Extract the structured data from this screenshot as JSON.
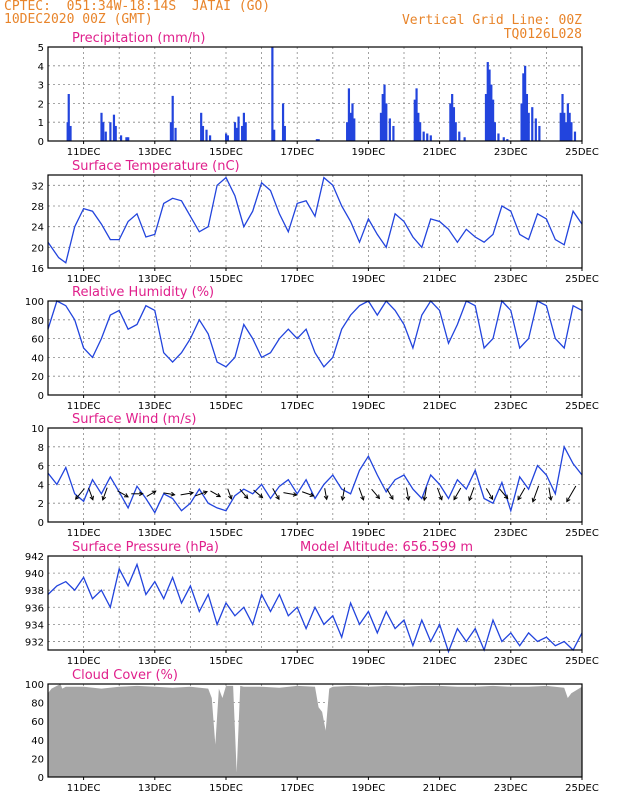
{
  "header": {
    "line1": "CPTEC:  051:34W-18:14S  JATAI (GO)",
    "line2": "10DEC2020 00Z (GMT)",
    "right1": "Vertical Grid Line: 00Z",
    "right2": "TQ0126L028"
  },
  "colors": {
    "header": "#e8842a",
    "title": "#e0208c",
    "line": "#2244dd",
    "cloud": "#a6a6a6"
  },
  "date_ticks": [
    "11DEC",
    "13DEC",
    "15DEC",
    "17DEC",
    "19DEC",
    "21DEC",
    "23DEC",
    "25DEC"
  ],
  "chart_data": [
    {
      "id": "precip",
      "type": "bar",
      "title": "Precipitation (mm/h)",
      "ylim": [
        0,
        5
      ],
      "yticks": [
        0,
        1,
        2,
        3,
        4,
        5
      ],
      "xlim_days": [
        10,
        25
      ],
      "x": [
        10.55,
        10.58,
        10.63,
        11.5,
        11.55,
        11.62,
        11.75,
        11.85,
        11.9,
        12.05,
        12.2,
        12.25,
        13.45,
        13.5,
        13.58,
        14.3,
        14.35,
        14.45,
        14.55,
        15.0,
        15.05,
        15.25,
        15.3,
        15.35,
        15.45,
        15.5,
        15.55,
        16.3,
        16.35,
        16.6,
        16.65,
        17.55,
        17.6,
        18.4,
        18.45,
        18.5,
        18.55,
        18.6,
        19.35,
        19.4,
        19.45,
        19.5,
        19.6,
        19.7,
        20.3,
        20.35,
        20.4,
        20.45,
        20.55,
        20.65,
        20.75,
        21.3,
        21.35,
        21.4,
        21.45,
        21.55,
        21.7,
        22.3,
        22.35,
        22.4,
        22.45,
        22.5,
        22.55,
        22.65,
        22.8,
        22.9,
        23.3,
        23.35,
        23.4,
        23.45,
        23.5,
        23.6,
        23.7,
        23.8,
        24.4,
        24.45,
        24.5,
        24.55,
        24.6,
        24.65,
        24.7,
        24.8
      ],
      "values": [
        1.0,
        2.5,
        0.8,
        1.5,
        1.0,
        0.5,
        1.0,
        1.4,
        0.8,
        0.3,
        0.2,
        0.2,
        1.0,
        2.4,
        0.7,
        1.5,
        0.8,
        0.6,
        0.3,
        0.4,
        0.3,
        1.0,
        0.7,
        1.3,
        0.8,
        1.5,
        1.0,
        5.0,
        0.6,
        2.0,
        0.8,
        0.1,
        0.1,
        1.0,
        2.8,
        1.5,
        2.0,
        1.2,
        1.5,
        2.5,
        3.0,
        2.0,
        1.2,
        0.8,
        2.2,
        2.8,
        1.5,
        1.0,
        0.5,
        0.4,
        0.3,
        2.0,
        2.5,
        1.8,
        1.0,
        0.5,
        0.2,
        2.5,
        4.2,
        3.8,
        3.0,
        2.2,
        1.0,
        0.4,
        0.2,
        0.1,
        2.0,
        3.6,
        4.0,
        2.5,
        1.5,
        1.8,
        1.2,
        0.8,
        1.5,
        2.5,
        1.5,
        1.0,
        2.0,
        1.5,
        1.0,
        0.5
      ]
    },
    {
      "id": "temp",
      "type": "line",
      "title": "Surface Temperature (nC)",
      "ylim": [
        16,
        34
      ],
      "yticks": [
        16,
        20,
        24,
        28,
        32
      ],
      "x": [
        10.0,
        10.3,
        10.5,
        10.75,
        11.0,
        11.25,
        11.5,
        11.75,
        12.0,
        12.25,
        12.5,
        12.75,
        13.0,
        13.25,
        13.5,
        13.75,
        14.0,
        14.25,
        14.5,
        14.75,
        15.0,
        15.25,
        15.5,
        15.75,
        16.0,
        16.25,
        16.5,
        16.75,
        17.0,
        17.25,
        17.5,
        17.75,
        18.0,
        18.25,
        18.5,
        18.75,
        19.0,
        19.25,
        19.5,
        19.75,
        20.0,
        20.25,
        20.5,
        20.75,
        21.0,
        21.25,
        21.5,
        21.75,
        22.0,
        22.25,
        22.5,
        22.75,
        23.0,
        23.25,
        23.5,
        23.75,
        24.0,
        24.25,
        24.5,
        24.75,
        25.0
      ],
      "values": [
        21.0,
        18.0,
        17.0,
        24.0,
        27.5,
        27.0,
        24.5,
        21.5,
        21.5,
        25.0,
        26.5,
        22.0,
        22.5,
        28.5,
        29.5,
        29.0,
        26.0,
        23.0,
        24.0,
        32.0,
        33.5,
        30.0,
        24.0,
        27.0,
        32.5,
        31.0,
        26.5,
        23.0,
        28.5,
        29.0,
        26.0,
        33.5,
        32.0,
        28.0,
        25.0,
        21.0,
        25.5,
        22.5,
        20.0,
        26.5,
        25.0,
        22.0,
        20.0,
        25.5,
        25.0,
        23.5,
        21.0,
        23.5,
        22.0,
        21.0,
        22.5,
        28.0,
        27.0,
        22.5,
        21.5,
        26.5,
        25.5,
        21.5,
        20.5,
        27.0,
        24.5
      ]
    },
    {
      "id": "rh",
      "type": "line",
      "title": "Relative Humidity (%)",
      "ylim": [
        0,
        100
      ],
      "yticks": [
        0,
        20,
        40,
        60,
        80,
        100
      ],
      "x": [
        10.0,
        10.25,
        10.5,
        10.75,
        11.0,
        11.25,
        11.5,
        11.75,
        12.0,
        12.25,
        12.5,
        12.75,
        13.0,
        13.25,
        13.5,
        13.75,
        14.0,
        14.25,
        14.5,
        14.75,
        15.0,
        15.25,
        15.5,
        15.75,
        16.0,
        16.25,
        16.5,
        16.75,
        17.0,
        17.25,
        17.5,
        17.75,
        18.0,
        18.25,
        18.5,
        18.75,
        19.0,
        19.25,
        19.5,
        19.75,
        20.0,
        20.25,
        20.5,
        20.75,
        21.0,
        21.25,
        21.5,
        21.75,
        22.0,
        22.25,
        22.5,
        22.75,
        23.0,
        23.25,
        23.5,
        23.75,
        24.0,
        24.25,
        24.5,
        24.75,
        25.0
      ],
      "values": [
        70,
        100,
        95,
        80,
        50,
        40,
        60,
        85,
        90,
        70,
        75,
        95,
        90,
        45,
        35,
        45,
        60,
        80,
        65,
        35,
        30,
        40,
        75,
        60,
        40,
        45,
        60,
        70,
        60,
        70,
        45,
        30,
        40,
        70,
        85,
        95,
        100,
        85,
        100,
        90,
        75,
        50,
        85,
        100,
        90,
        55,
        75,
        100,
        95,
        50,
        60,
        100,
        90,
        50,
        60,
        100,
        95,
        60,
        50,
        95,
        90
      ]
    },
    {
      "id": "wind",
      "type": "line",
      "title": "Surface Wind (m/s)",
      "ylim": [
        0,
        10
      ],
      "yticks": [
        0,
        2,
        4,
        6,
        8,
        10
      ],
      "x": [
        10.0,
        10.25,
        10.5,
        10.75,
        11.0,
        11.25,
        11.5,
        11.75,
        12.0,
        12.25,
        12.5,
        12.75,
        13.0,
        13.25,
        13.5,
        13.75,
        14.0,
        14.25,
        14.5,
        14.75,
        15.0,
        15.25,
        15.5,
        15.75,
        16.0,
        16.25,
        16.5,
        16.75,
        17.0,
        17.25,
        17.5,
        17.75,
        18.0,
        18.25,
        18.5,
        18.75,
        19.0,
        19.25,
        19.5,
        19.75,
        20.0,
        20.25,
        20.5,
        20.75,
        21.0,
        21.25,
        21.5,
        21.75,
        22.0,
        22.25,
        22.5,
        22.75,
        23.0,
        23.25,
        23.5,
        23.75,
        24.0,
        24.25,
        24.5,
        24.75,
        25.0
      ],
      "values": [
        5.2,
        4.0,
        5.8,
        3.0,
        2.2,
        4.5,
        3.0,
        4.8,
        3.2,
        1.5,
        3.8,
        2.5,
        1.0,
        3.0,
        2.5,
        1.2,
        2.0,
        3.5,
        2.0,
        1.5,
        1.2,
        2.8,
        3.5,
        3.0,
        4.0,
        2.5,
        3.8,
        4.5,
        3.0,
        4.5,
        2.5,
        4.0,
        5.0,
        3.5,
        3.0,
        5.5,
        7.0,
        5.0,
        3.2,
        4.5,
        5.0,
        3.5,
        2.5,
        5.0,
        4.0,
        2.5,
        4.5,
        3.5,
        5.5,
        2.5,
        2.0,
        4.2,
        1.2,
        4.8,
        3.5,
        6.0,
        5.0,
        3.0,
        8.0,
        6.2,
        5.0
      ],
      "arrows": [
        {
          "day": 10.9,
          "speed": 3.5,
          "dir_deg": 320
        },
        {
          "day": 11.2,
          "speed": 3.0,
          "dir_deg": 20
        },
        {
          "day": 11.6,
          "speed": 3.2,
          "dir_deg": 340
        },
        {
          "day": 12.1,
          "speed": 2.8,
          "dir_deg": 60
        },
        {
          "day": 12.5,
          "speed": 2.5,
          "dir_deg": 90
        },
        {
          "day": 12.9,
          "speed": 2.0,
          "dir_deg": 120
        },
        {
          "day": 13.4,
          "speed": 2.4,
          "dir_deg": 80
        },
        {
          "day": 13.9,
          "speed": 3.0,
          "dir_deg": 100
        },
        {
          "day": 14.3,
          "speed": 3.0,
          "dir_deg": 110
        },
        {
          "day": 14.7,
          "speed": 2.4,
          "dir_deg": 60
        },
        {
          "day": 15.1,
          "speed": 2.2,
          "dir_deg": 20
        },
        {
          "day": 15.5,
          "speed": 2.8,
          "dir_deg": 40
        },
        {
          "day": 15.9,
          "speed": 2.6,
          "dir_deg": 50
        },
        {
          "day": 16.4,
          "speed": 3.0,
          "dir_deg": 30
        },
        {
          "day": 16.8,
          "speed": 3.4,
          "dir_deg": 80
        },
        {
          "day": 17.3,
          "speed": 2.8,
          "dir_deg": 70
        },
        {
          "day": 17.8,
          "speed": 2.4,
          "dir_deg": 10
        },
        {
          "day": 18.3,
          "speed": 3.0,
          "dir_deg": 350
        },
        {
          "day": 18.8,
          "speed": 3.2,
          "dir_deg": 20
        },
        {
          "day": 19.2,
          "speed": 2.8,
          "dir_deg": 40
        },
        {
          "day": 19.6,
          "speed": 3.0,
          "dir_deg": 30
        },
        {
          "day": 20.1,
          "speed": 3.0,
          "dir_deg": 10
        },
        {
          "day": 20.6,
          "speed": 3.2,
          "dir_deg": 350
        },
        {
          "day": 21.0,
          "speed": 3.0,
          "dir_deg": 20
        },
        {
          "day": 21.5,
          "speed": 3.4,
          "dir_deg": 330
        },
        {
          "day": 21.9,
          "speed": 3.6,
          "dir_deg": 340
        },
        {
          "day": 22.4,
          "speed": 3.0,
          "dir_deg": 30
        },
        {
          "day": 22.8,
          "speed": 3.0,
          "dir_deg": 40
        },
        {
          "day": 23.3,
          "speed": 3.5,
          "dir_deg": 330
        },
        {
          "day": 23.7,
          "speed": 5.0,
          "dir_deg": 340
        },
        {
          "day": 24.1,
          "speed": 3.0,
          "dir_deg": 10
        },
        {
          "day": 24.7,
          "speed": 5.5,
          "dir_deg": 330
        }
      ]
    },
    {
      "id": "pres",
      "type": "line",
      "title": "Surface Pressure (hPa)",
      "annotation": "Model Altitude: 656.599 m",
      "ylim": [
        931,
        942
      ],
      "yticks": [
        932,
        934,
        936,
        938,
        940,
        942
      ],
      "x": [
        10.0,
        10.25,
        10.5,
        10.75,
        11.0,
        11.25,
        11.5,
        11.75,
        12.0,
        12.25,
        12.5,
        12.75,
        13.0,
        13.25,
        13.5,
        13.75,
        14.0,
        14.25,
        14.5,
        14.75,
        15.0,
        15.25,
        15.5,
        15.75,
        16.0,
        16.25,
        16.5,
        16.75,
        17.0,
        17.25,
        17.5,
        17.75,
        18.0,
        18.25,
        18.5,
        18.75,
        19.0,
        19.25,
        19.5,
        19.75,
        20.0,
        20.25,
        20.5,
        20.75,
        21.0,
        21.25,
        21.5,
        21.75,
        22.0,
        22.25,
        22.5,
        22.75,
        23.0,
        23.25,
        23.5,
        23.75,
        24.0,
        24.25,
        24.5,
        24.75,
        25.0
      ],
      "values": [
        937.5,
        938.5,
        939.0,
        938.0,
        939.5,
        937.0,
        938.0,
        936.0,
        940.5,
        938.5,
        941.0,
        937.5,
        939.0,
        937.0,
        939.5,
        936.5,
        938.5,
        935.5,
        937.5,
        934.0,
        936.5,
        935.0,
        936.0,
        934.0,
        937.5,
        935.5,
        937.5,
        935.0,
        936.0,
        933.5,
        936.0,
        934.0,
        935.0,
        932.5,
        936.5,
        934.0,
        935.5,
        933.0,
        935.5,
        933.5,
        934.5,
        931.5,
        934.5,
        932.0,
        934.0,
        930.8,
        933.5,
        932.0,
        933.5,
        931.0,
        934.5,
        932.0,
        933.0,
        931.5,
        933.0,
        932.0,
        932.5,
        931.5,
        932.0,
        931.0,
        933.0
      ]
    },
    {
      "id": "cloud",
      "type": "area",
      "title": "Cloud Cover (%)",
      "ylim": [
        0,
        100
      ],
      "yticks": [
        0,
        20,
        40,
        60,
        80,
        100
      ],
      "x": [
        10.0,
        10.1,
        10.35,
        10.4,
        10.5,
        11.0,
        11.5,
        12.0,
        12.5,
        13.0,
        13.5,
        14.0,
        14.5,
        14.6,
        14.7,
        14.8,
        14.9,
        15.0,
        15.2,
        15.3,
        15.4,
        15.5,
        16.0,
        16.5,
        17.0,
        17.5,
        17.6,
        17.7,
        17.8,
        17.9,
        18.0,
        18.5,
        19.0,
        19.5,
        20.0,
        20.5,
        21.0,
        21.5,
        22.0,
        22.5,
        23.0,
        23.5,
        24.0,
        24.5,
        24.6,
        24.7,
        25.0
      ],
      "values": [
        90,
        95,
        100,
        95,
        97,
        97,
        95,
        97,
        98,
        97,
        96,
        97,
        95,
        85,
        35,
        95,
        85,
        98,
        98,
        5,
        98,
        97,
        97,
        96,
        98,
        97,
        75,
        70,
        50,
        95,
        97,
        98,
        97,
        98,
        97,
        98,
        98,
        97,
        97,
        98,
        97,
        97,
        98,
        96,
        85,
        90,
        97
      ]
    }
  ]
}
